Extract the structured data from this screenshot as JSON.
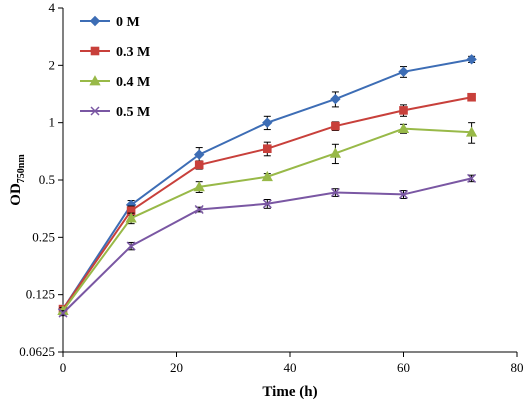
{
  "chart_data": {
    "type": "line",
    "xlabel": "Time (h)",
    "ylabel": "OD",
    "ylabel_sub": "750nm",
    "xlim": [
      0,
      80
    ],
    "ylim": [
      0.0625,
      4
    ],
    "y_scale": "log2",
    "x_ticks": [
      0,
      20,
      40,
      60,
      80
    ],
    "y_ticks": [
      "0.0625",
      "0.125",
      "0.25",
      "0.5",
      "1",
      "2",
      "4"
    ],
    "y_tick_values": [
      0.0625,
      0.125,
      0.25,
      0.5,
      1,
      2,
      4
    ],
    "grid": false,
    "legend_position": "top-left",
    "x": [
      0,
      12,
      24,
      36,
      48,
      60,
      72
    ],
    "series": [
      {
        "name": "0 M",
        "color": "#3d6db5",
        "marker": "diamond",
        "values": [
          0.105,
          0.37,
          0.68,
          1.0,
          1.33,
          1.85,
          2.15
        ],
        "errors": [
          0.004,
          0.02,
          0.06,
          0.08,
          0.12,
          0.12,
          0.08
        ]
      },
      {
        "name": "0.3 M",
        "color": "#c8403b",
        "marker": "square",
        "values": [
          0.105,
          0.345,
          0.6,
          0.73,
          0.96,
          1.16,
          1.36
        ],
        "errors": [
          0.004,
          0.02,
          0.03,
          0.06,
          0.05,
          0.08,
          0.05
        ]
      },
      {
        "name": "0.4 M",
        "color": "#98b948",
        "marker": "triangle",
        "values": [
          0.103,
          0.315,
          0.46,
          0.52,
          0.69,
          0.93,
          0.89
        ],
        "errors": [
          0.004,
          0.02,
          0.03,
          0.02,
          0.08,
          0.05,
          0.11
        ]
      },
      {
        "name": "0.5 M",
        "color": "#7a57a3",
        "marker": "x",
        "values": [
          0.1,
          0.225,
          0.35,
          0.375,
          0.43,
          0.42,
          0.51
        ],
        "errors": [
          0.003,
          0.01,
          0.01,
          0.02,
          0.02,
          0.02,
          0.02
        ]
      }
    ]
  }
}
